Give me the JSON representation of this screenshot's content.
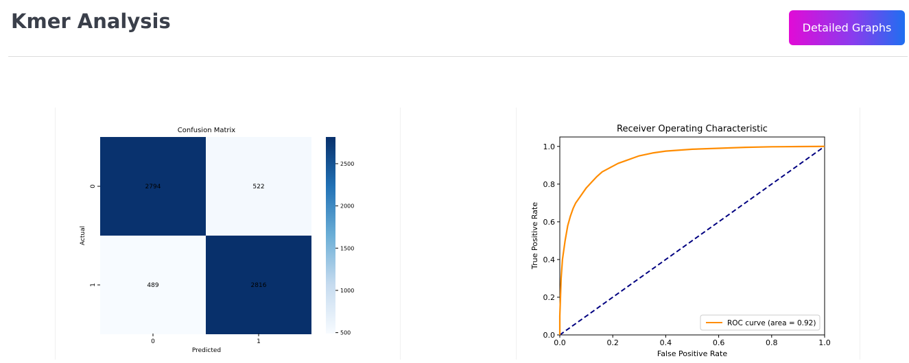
{
  "header": {
    "title": "Kmer Analysis",
    "button_label": "Detailed Graphs"
  },
  "colors": {
    "matrix_dark": "#08306b",
    "matrix_light": "#f7fbff",
    "roc_curve": "#ff8c00",
    "diagonal": "#000080"
  },
  "chart_data": [
    {
      "type": "heatmap",
      "title": "Confusion Matrix",
      "xlabel": "Predicted",
      "ylabel": "Actual",
      "x_ticks": [
        "0",
        "1"
      ],
      "y_ticks": [
        "0",
        "1"
      ],
      "values": [
        [
          2794,
          522
        ],
        [
          489,
          2816
        ]
      ],
      "colorbar_ticks": [
        "2500",
        "2000",
        "1500",
        "1000",
        "500"
      ],
      "colorbar_range": [
        489,
        2816
      ],
      "colormap": "Blues"
    },
    {
      "type": "line",
      "title": "Receiver Operating Characteristic",
      "xlabel": "False Positive Rate",
      "ylabel": "True Positive Rate",
      "xlim": [
        0,
        1
      ],
      "ylim": [
        0,
        1.05
      ],
      "x_ticks": [
        "0.0",
        "0.2",
        "0.4",
        "0.6",
        "0.8",
        "1.0"
      ],
      "y_ticks": [
        "0.0",
        "0.2",
        "0.4",
        "0.6",
        "0.8",
        "1.0"
      ],
      "legend_position": "lower right",
      "series": [
        {
          "name": "ROC curve (area = 0.92)",
          "style": "solid",
          "x": [
            0,
            0,
            0.005,
            0.01,
            0.02,
            0.03,
            0.04,
            0.05,
            0.06,
            0.08,
            0.1,
            0.12,
            0.14,
            0.16,
            0.18,
            0.2,
            0.22,
            0.25,
            0.28,
            0.3,
            0.35,
            0.4,
            0.5,
            0.6,
            0.7,
            0.8,
            0.9,
            1.0
          ],
          "y": [
            0,
            0.1,
            0.3,
            0.4,
            0.5,
            0.58,
            0.63,
            0.67,
            0.7,
            0.74,
            0.78,
            0.81,
            0.84,
            0.865,
            0.88,
            0.895,
            0.91,
            0.925,
            0.94,
            0.95,
            0.965,
            0.975,
            0.985,
            0.99,
            0.995,
            0.998,
            0.999,
            1.0
          ]
        },
        {
          "style": "dashed",
          "x": [
            0,
            1
          ],
          "y": [
            0,
            1
          ]
        }
      ]
    }
  ]
}
